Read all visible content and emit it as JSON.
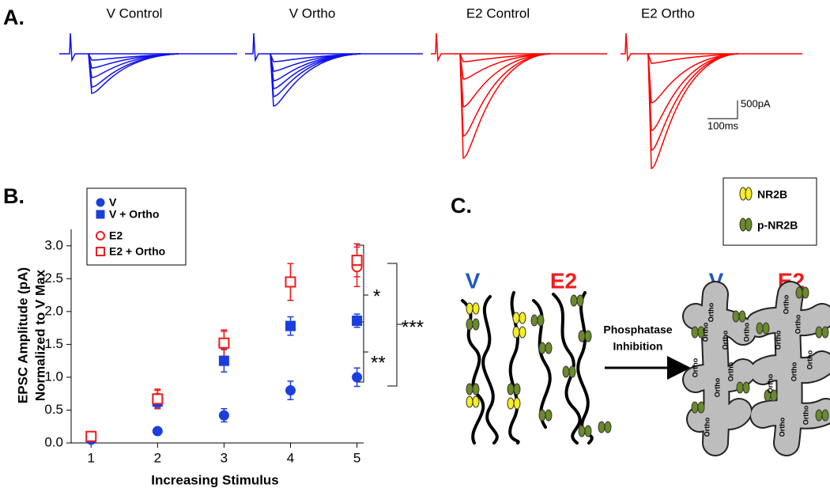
{
  "panel_labels": [
    "A.",
    "B.",
    "C."
  ],
  "traces": {
    "titles": [
      "V Control",
      "V Ortho",
      "E2 Control",
      "E2 Ortho"
    ],
    "scale_bar": {
      "current": "500pA",
      "time": "100ms"
    }
  },
  "chart_data": {
    "type": "scatter",
    "x_label": "Increasing Stimulus",
    "y_label": [
      "EPSC Amplitude (pA)",
      "Normalized to V Max"
    ],
    "x": [
      1,
      2,
      3,
      4,
      5
    ],
    "series": [
      {
        "name": "V",
        "color": "#1a3fdc",
        "marker": "circle",
        "filled": true,
        "values": [
          0.05,
          0.18,
          0.42,
          0.8,
          1.0
        ],
        "errors": [
          0.02,
          0.03,
          0.1,
          0.14,
          0.14
        ]
      },
      {
        "name": "V + Ortho",
        "color": "#1a3fdc",
        "marker": "square",
        "filled": true,
        "values": [
          0.07,
          0.63,
          1.25,
          1.78,
          1.86
        ],
        "errors": [
          0.02,
          0.09,
          0.17,
          0.14,
          0.1
        ]
      },
      {
        "name": "E2",
        "color": "#ee1c1c",
        "marker": "circle",
        "filled": false,
        "values": [
          0.1,
          0.68,
          1.5,
          2.45,
          2.68
        ],
        "errors": [
          0.02,
          0.12,
          0.2,
          0.28,
          0.3
        ]
      },
      {
        "name": "E2 + Ortho",
        "color": "#ee1c1c",
        "marker": "square",
        "filled": false,
        "values": [
          0.1,
          0.67,
          1.52,
          2.45,
          2.78
        ],
        "errors": [
          0.02,
          0.15,
          0.2,
          0.28,
          0.25
        ]
      }
    ],
    "xlim": [
      0.7,
      5.1
    ],
    "ylim": [
      0,
      3.25
    ],
    "xticks": [
      1,
      2,
      3,
      4,
      5
    ],
    "yticks": [
      {
        "value": 0,
        "label": "0.0"
      },
      0.5,
      {
        "value": 1,
        "label": "1.0"
      },
      1.5,
      {
        "value": 2,
        "label": "2.0"
      },
      2.5,
      {
        "value": 3,
        "label": "3.0"
      }
    ],
    "annotations": [
      "*",
      "**",
      "***"
    ]
  },
  "diagram": {
    "legend": [
      "NR2B",
      "p-NR2B"
    ],
    "group_labels": [
      "V",
      "E2",
      "V",
      "E2"
    ],
    "arrow_label": [
      "Phosphatase",
      "Inhibition"
    ],
    "ortho_labels": [
      "Ortho",
      "Ortho",
      "Ortho",
      "Ortho",
      "Ortho",
      "Ortho",
      "Ortho",
      "Ortho",
      "Ortho",
      "Ortho",
      "Ortho",
      "Ortho",
      "Ortho",
      "Ortho",
      "Ortho",
      "Ortho"
    ]
  }
}
